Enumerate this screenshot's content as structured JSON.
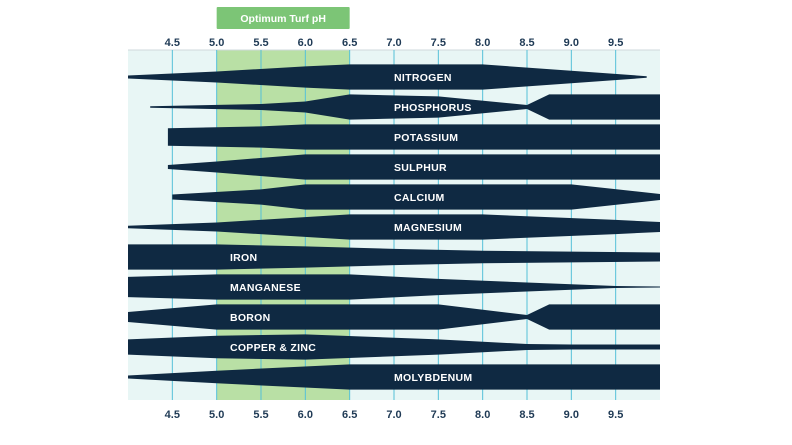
{
  "banner": "Optimum Turf pH",
  "x_ticks": [
    "4.5",
    "5.0",
    "5.5",
    "6.0",
    "6.5",
    "7.0",
    "7.5",
    "8.0",
    "8.5",
    "9.0",
    "9.5"
  ],
  "colors": {
    "band": "#0f2942",
    "background": "#e8f6f5",
    "optimum": "#b9e0a5",
    "banner": "#7cc576",
    "gridline": "#55c0d8",
    "text": "#1f3a55"
  },
  "chart_data": {
    "type": "area",
    "x_range": [
      4.0,
      10.0
    ],
    "optimum_range": [
      5.0,
      6.5
    ],
    "nutrients": [
      {
        "name": "NITROGEN",
        "label_at": 7.0,
        "profile": [
          [
            4.0,
            0.06
          ],
          [
            5.0,
            0.22
          ],
          [
            6.0,
            0.42
          ],
          [
            6.5,
            0.5
          ],
          [
            8.0,
            0.5
          ],
          [
            9.0,
            0.25
          ],
          [
            9.85,
            0.03
          ]
        ]
      },
      {
        "name": "PHOSPHORUS",
        "label_at": 7.0,
        "profile": [
          [
            4.25,
            0.03
          ],
          [
            5.5,
            0.12
          ],
          [
            6.0,
            0.22
          ],
          [
            6.5,
            0.5
          ],
          [
            7.5,
            0.42
          ],
          [
            8.5,
            0.08
          ],
          [
            8.75,
            0.5
          ],
          [
            10.0,
            0.5
          ]
        ]
      },
      {
        "name": "POTASSIUM",
        "label_at": 7.0,
        "profile": [
          [
            4.45,
            0.35
          ],
          [
            5.5,
            0.42
          ],
          [
            6.0,
            0.5
          ],
          [
            10.0,
            0.5
          ]
        ]
      },
      {
        "name": "SULPHUR",
        "label_at": 7.0,
        "profile": [
          [
            4.45,
            0.08
          ],
          [
            5.0,
            0.22
          ],
          [
            6.0,
            0.5
          ],
          [
            10.0,
            0.5
          ]
        ]
      },
      {
        "name": "CALCIUM",
        "label_at": 7.0,
        "profile": [
          [
            4.5,
            0.1
          ],
          [
            5.5,
            0.3
          ],
          [
            6.0,
            0.5
          ],
          [
            9.0,
            0.5
          ],
          [
            10.0,
            0.12
          ]
        ]
      },
      {
        "name": "MAGNESIUM",
        "label_at": 7.0,
        "profile": [
          [
            4.0,
            0.05
          ],
          [
            5.0,
            0.18
          ],
          [
            6.5,
            0.5
          ],
          [
            8.0,
            0.5
          ],
          [
            9.5,
            0.28
          ],
          [
            10.0,
            0.2
          ]
        ]
      },
      {
        "name": "IRON",
        "label_at": 5.15,
        "profile": [
          [
            4.0,
            0.5
          ],
          [
            5.0,
            0.5
          ],
          [
            6.0,
            0.42
          ],
          [
            7.0,
            0.32
          ],
          [
            8.0,
            0.25
          ],
          [
            10.0,
            0.18
          ]
        ]
      },
      {
        "name": "MANGANESE",
        "label_at": 5.15,
        "profile": [
          [
            4.0,
            0.4
          ],
          [
            5.0,
            0.5
          ],
          [
            6.5,
            0.5
          ],
          [
            7.5,
            0.32
          ],
          [
            9.5,
            0.04
          ],
          [
            10.0,
            0.02
          ]
        ]
      },
      {
        "name": "BORON",
        "label_at": 5.15,
        "profile": [
          [
            4.0,
            0.2
          ],
          [
            5.0,
            0.5
          ],
          [
            7.5,
            0.5
          ],
          [
            8.5,
            0.08
          ],
          [
            8.75,
            0.5
          ],
          [
            10.0,
            0.5
          ]
        ]
      },
      {
        "name": "COPPER & ZINC",
        "label_at": 5.15,
        "profile": [
          [
            4.0,
            0.3
          ],
          [
            5.0,
            0.45
          ],
          [
            6.0,
            0.5
          ],
          [
            7.5,
            0.3
          ],
          [
            8.5,
            0.12
          ],
          [
            9.0,
            0.1
          ],
          [
            10.0,
            0.1
          ]
        ]
      },
      {
        "name": "MOLYBDENUM",
        "label_at": 7.0,
        "profile": [
          [
            4.0,
            0.06
          ],
          [
            5.0,
            0.25
          ],
          [
            6.5,
            0.5
          ],
          [
            10.0,
            0.5
          ]
        ]
      }
    ]
  }
}
